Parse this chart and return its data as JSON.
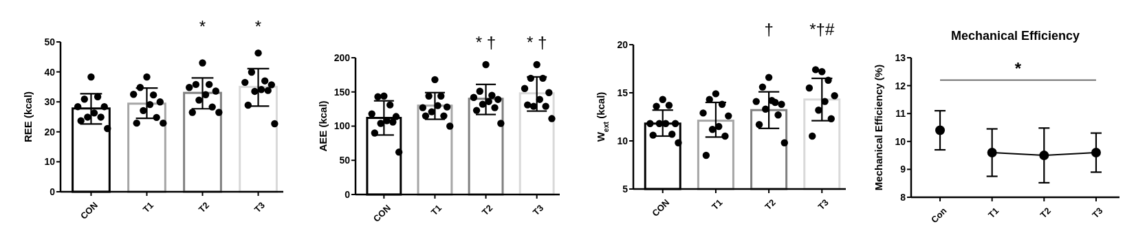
{
  "chart_data": [
    {
      "type": "bar",
      "ylabel": "REE (kcal)",
      "categories": [
        "CON",
        "T1",
        "T2",
        "T3"
      ],
      "ylim": [
        0,
        50
      ],
      "yticks": [
        0,
        10,
        20,
        30,
        40,
        50
      ],
      "grid": false,
      "series": [
        {
          "type": "bar",
          "colors": [
            "#000000",
            "#a6a6a6",
            "#808080",
            "#d9d9d9"
          ],
          "values": [
            27.8,
            29.4,
            33.0,
            35.0
          ],
          "errors": [
            [
              22.6,
              32.7
            ],
            [
              24.5,
              34.6
            ],
            [
              27.7,
              38.0
            ],
            [
              28.6,
              41.1
            ]
          ]
        },
        {
          "type": "scatter",
          "color": "#000000",
          "x": [
            "CON",
            "CON",
            "CON",
            "CON",
            "CON",
            "CON",
            "CON",
            "CON",
            "CON",
            "CON",
            "T1",
            "T1",
            "T1",
            "T1",
            "T1",
            "T1",
            "T1",
            "T1",
            "T1",
            "T1",
            "T2",
            "T2",
            "T2",
            "T2",
            "T2",
            "T2",
            "T2",
            "T2",
            "T2",
            "T2",
            "T3",
            "T3",
            "T3",
            "T3",
            "T3",
            "T3",
            "T3",
            "T3",
            "T3",
            "T3"
          ],
          "values": [
            38.3,
            30.9,
            31.7,
            28.4,
            28.4,
            26.3,
            24.9,
            24.9,
            23.7,
            21.1,
            38.3,
            34.8,
            32.3,
            32.5,
            30.0,
            29.1,
            27.1,
            24.8,
            22.9,
            22.9,
            43.0,
            35.8,
            35.8,
            34.8,
            33.6,
            32.4,
            30.6,
            28.3,
            26.5,
            26.5,
            46.3,
            39.9,
            37.0,
            36.5,
            35.7,
            34.1,
            33.5,
            33.8,
            28.9,
            22.7
          ]
        }
      ],
      "annotations": [
        "*",
        "*"
      ]
    },
    {
      "type": "bar",
      "ylabel": "AEE (kcal)",
      "categories": [
        "CON",
        "T1",
        "T2",
        "T3"
      ],
      "ylim": [
        0,
        200
      ],
      "yticks": [
        0,
        50,
        100,
        150,
        200
      ],
      "grid": false,
      "series": [
        {
          "type": "bar",
          "colors": [
            "#000000",
            "#a6a6a6",
            "#808080",
            "#d9d9d9"
          ],
          "values": [
            112,
            130,
            140,
            148
          ],
          "errors": [
            [
              87,
              137
            ],
            [
              110,
              149
            ],
            [
              117,
              161
            ],
            [
              122,
              172
            ]
          ]
        },
        {
          "type": "scatter",
          "color": "#000000",
          "x": [
            "CON",
            "CON",
            "CON",
            "CON",
            "CON",
            "CON",
            "CON",
            "CON",
            "CON",
            "CON",
            "T1",
            "T1",
            "T1",
            "T1",
            "T1",
            "T1",
            "T1",
            "T1",
            "T1",
            "T1",
            "T2",
            "T2",
            "T2",
            "T2",
            "T2",
            "T2",
            "T2",
            "T2",
            "T2",
            "T2",
            "T3",
            "T3",
            "T3",
            "T3",
            "T3",
            "T3",
            "T3",
            "T3",
            "T3",
            "T3"
          ],
          "values": [
            144,
            143,
            131,
            118,
            114,
            108,
            104,
            106,
            90,
            62,
            168,
            144,
            144,
            127,
            128,
            130,
            121,
            115,
            115,
            100,
            190,
            151,
            145,
            142,
            139,
            136,
            132,
            127,
            123,
            104,
            190,
            170,
            170,
            155,
            149,
            139,
            129,
            129,
            131,
            111
          ]
        }
      ],
      "annotations": [
        "* †",
        "* †"
      ]
    },
    {
      "type": "bar",
      "ylabel": "W$_{ext}$ (kcal)",
      "categories": [
        "CON",
        "T1",
        "T2",
        "T3"
      ],
      "ylim": [
        5,
        20
      ],
      "yticks": [
        5,
        10,
        15,
        20
      ],
      "grid": false,
      "series": [
        {
          "type": "bar",
          "colors": [
            "#000000",
            "#a6a6a6",
            "#808080",
            "#d9d9d9"
          ],
          "values": [
            11.8,
            12.1,
            13.2,
            14.3
          ],
          "errors": [
            [
              10.5,
              13.2
            ],
            [
              10.4,
              14.0
            ],
            [
              11.3,
              15.1
            ],
            [
              12.1,
              16.5
            ]
          ]
        },
        {
          "type": "scatter",
          "color": "#000000",
          "x": [
            "CON",
            "CON",
            "CON",
            "CON",
            "CON",
            "CON",
            "CON",
            "CON",
            "CON",
            "CON",
            "T1",
            "T1",
            "T1",
            "T1",
            "T1",
            "T1",
            "T1",
            "T1",
            "T1",
            "T2",
            "T2",
            "T2",
            "T2",
            "T2",
            "T2",
            "T2",
            "T2",
            "T2",
            "T2",
            "T3",
            "T3",
            "T3",
            "T3",
            "T3",
            "T3",
            "T3",
            "T3",
            "T3"
          ],
          "values": [
            14.3,
            13.6,
            13.7,
            11.8,
            11.8,
            11.8,
            11.8,
            10.7,
            10.6,
            9.8,
            14.9,
            14.3,
            13.8,
            12.9,
            12.6,
            11.5,
            11.2,
            10.5,
            8.5,
            16.6,
            15.6,
            14.0,
            14.1,
            13.8,
            14.2,
            13.3,
            12.7,
            11.7,
            9.8,
            17.2,
            17.4,
            16.3,
            15.5,
            14.7,
            14.1,
            13.2,
            12.3,
            10.5
          ]
        }
      ],
      "annotations": [
        "†",
        "*†#"
      ]
    },
    {
      "type": "line",
      "title": "Mechanical Efficiency",
      "ylabel": "Mechanical Efficiency (%)",
      "categories": [
        "Con",
        "T1",
        "T2",
        "T3"
      ],
      "ylim": [
        8,
        13
      ],
      "yticks": [
        8,
        9,
        10,
        11,
        12,
        13
      ],
      "grid": false,
      "marker": "circle",
      "series": [
        {
          "type": "scatter",
          "color": "#000000",
          "x": [
            "Con"
          ],
          "values": [
            10.4
          ],
          "errors": [
            [
              9.7,
              11.1
            ]
          ]
        },
        {
          "type": "line",
          "color": "#000000",
          "x": [
            "T1",
            "T2",
            "T3"
          ],
          "values": [
            9.6,
            9.5,
            9.6
          ],
          "errors": [
            [
              8.75,
              10.45
            ],
            [
              8.52,
              10.48
            ],
            [
              8.9,
              10.3
            ]
          ]
        }
      ],
      "ref_lines": [
        {
          "axis": "y",
          "value": 12.2,
          "label": "*",
          "color": "#444444"
        }
      ]
    }
  ]
}
